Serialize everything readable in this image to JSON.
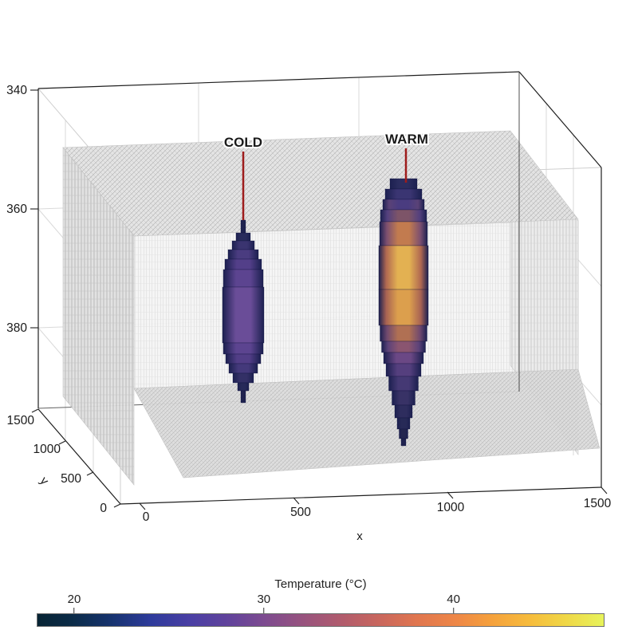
{
  "figure": {
    "description": "3D volume rendering of two temperature anomalies (voxel columns) inside a translucent gray model-grid volume",
    "background": "#ffffff"
  },
  "axes": {
    "x": {
      "label": "x",
      "ticks": [
        "0",
        "500",
        "1000",
        "1500"
      ]
    },
    "y": {
      "label": "y",
      "ticks": [
        "1500",
        "1000",
        "500",
        "0"
      ]
    },
    "z": {
      "label": "",
      "ticks": [
        "340",
        "360",
        "380"
      ]
    }
  },
  "annotations": [
    {
      "text": "COLD",
      "color": "#9e1c1c"
    },
    {
      "text": "WARM",
      "color": "#9e1c1c"
    }
  ],
  "colorbar": {
    "title": "Temperature (°C)",
    "ticks": [
      {
        "label": "20",
        "pos": 6.6
      },
      {
        "label": "30",
        "pos": 40.0
      },
      {
        "label": "40",
        "pos": 73.4
      }
    ],
    "stops": [
      [
        0,
        "#072434"
      ],
      [
        6,
        "#0b2b47"
      ],
      [
        13,
        "#16336e"
      ],
      [
        20,
        "#2e3b9b"
      ],
      [
        27,
        "#4a3fa4"
      ],
      [
        34,
        "#62439b"
      ],
      [
        40,
        "#7d4b90"
      ],
      [
        47,
        "#98537e"
      ],
      [
        54,
        "#b25c6c"
      ],
      [
        61,
        "#cb685c"
      ],
      [
        67,
        "#e0764f"
      ],
      [
        74,
        "#ee8747"
      ],
      [
        80,
        "#f5a03c"
      ],
      [
        87,
        "#f6bc3c"
      ],
      [
        93,
        "#f0d646"
      ],
      [
        100,
        "#e7f35b"
      ]
    ]
  },
  "chart_data": {
    "type": "3d-volume",
    "x_range": [
      0,
      1500
    ],
    "y_range": [
      0,
      1500
    ],
    "depth_ticks": [
      340,
      360,
      380
    ],
    "depth_axis_increases_downward": true,
    "temperature_scale_c": {
      "approx_min": 18,
      "approx_max": 48,
      "ticks": [
        20,
        30,
        40
      ]
    },
    "colormap": "thermal (dark navy → purple → magenta → orange → yellow)",
    "grid_volume": "translucent gray hatched mesh box spanning most of the x-y domain between roughly depth 350 and 392",
    "features": [
      {
        "name": "COLD",
        "appearance": "stepped voxel column, dark navy edges with purple core (coolest temperatures)",
        "cx": 305,
        "top": 276,
        "edge": "#1c2050",
        "slabs": [
          {
            "w": 6,
            "h": 16,
            "c": "#20234f"
          },
          {
            "w": 18,
            "h": 10,
            "c": "#282b5c"
          },
          {
            "w": 28,
            "h": 11,
            "c": "#3a3470"
          },
          {
            "w": 38,
            "h": 12,
            "c": "#4a3c80"
          },
          {
            "w": 46,
            "h": 13,
            "c": "#533f89"
          },
          {
            "w": 50,
            "h": 22,
            "c": "#5c4490"
          },
          {
            "w": 52,
            "h": 70,
            "c": "#6a4d98"
          },
          {
            "w": 50,
            "h": 14,
            "c": "#5c4490"
          },
          {
            "w": 44,
            "h": 12,
            "c": "#523e87"
          },
          {
            "w": 36,
            "h": 12,
            "c": "#44397b"
          },
          {
            "w": 26,
            "h": 12,
            "c": "#333066"
          },
          {
            "w": 14,
            "h": 10,
            "c": "#272a59"
          },
          {
            "w": 6,
            "h": 15,
            "c": "#20234f"
          }
        ]
      },
      {
        "name": "WARM",
        "appearance": "larger stepped voxel column, navy edges with orange-yellow hot core, tapering to a point at depth",
        "cx": 506,
        "top": 224,
        "edge": "#1c2050",
        "slabs": [
          {
            "w": 34,
            "h": 13,
            "c": "#2b2d5f"
          },
          {
            "w": 46,
            "h": 13,
            "c": "#3a3572"
          },
          {
            "w": 52,
            "h": 13,
            "c": "#4a3c80",
            "r": "#5a4277"
          },
          {
            "w": 58,
            "h": 15,
            "c": "#7d5468",
            "r": "#53407e"
          },
          {
            "w": 60,
            "h": 30,
            "c": "#c27b4f",
            "r": "#7c4f70"
          },
          {
            "w": 62,
            "h": 55,
            "c": "#e3b152",
            "r": "#b06851"
          },
          {
            "w": 62,
            "h": 45,
            "c": "#dc9f4d",
            "r": "#a76253"
          },
          {
            "w": 59,
            "h": 20,
            "c": "#b07053",
            "r": "#70496f"
          },
          {
            "w": 55,
            "h": 14,
            "c": "#8a5570",
            "r": "#5c4279"
          },
          {
            "w": 50,
            "h": 14,
            "c": "#6b4885"
          },
          {
            "w": 44,
            "h": 16,
            "c": "#553f7e"
          },
          {
            "w": 37,
            "h": 18,
            "c": "#453974"
          },
          {
            "w": 29,
            "h": 18,
            "c": "#383266"
          },
          {
            "w": 22,
            "h": 16,
            "c": "#2e2d5e"
          },
          {
            "w": 16,
            "h": 14,
            "c": "#272a57"
          },
          {
            "w": 11,
            "h": 12,
            "c": "#23264f"
          },
          {
            "w": 6,
            "h": 9,
            "c": "#20234f"
          }
        ]
      }
    ]
  }
}
